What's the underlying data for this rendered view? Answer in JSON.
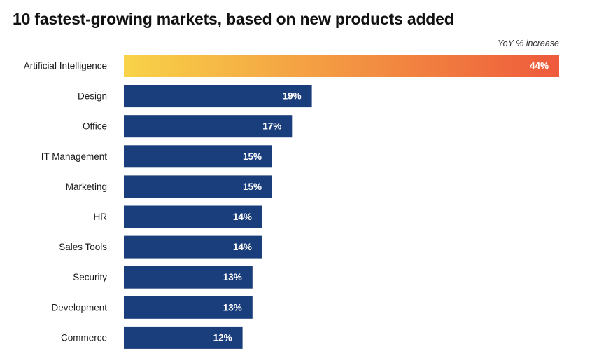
{
  "title": "10 fastest-growing markets, based on new products added",
  "unit_note": "YoY % increase",
  "colors": {
    "bar": "#1a3d7c",
    "highlight_start": "#f8d348",
    "highlight_end": "#ee5a3c",
    "value_text": "#ffffff"
  },
  "chart_data": {
    "type": "bar",
    "orientation": "horizontal",
    "title": "10 fastest-growing markets, based on new products added",
    "categories": [
      "Artificial Intelligence",
      "Design",
      "Office",
      "IT Management",
      "Marketing",
      "HR",
      "Sales Tools",
      "Security",
      "Development",
      "Commerce"
    ],
    "values": [
      44,
      19,
      17,
      15,
      15,
      14,
      14,
      13,
      13,
      12
    ],
    "value_labels": [
      "44%",
      "19%",
      "17%",
      "15%",
      "15%",
      "14%",
      "14%",
      "13%",
      "13%",
      "12%"
    ],
    "xlabel": "YoY % increase",
    "ylabel": "",
    "xlim": [
      0,
      44
    ],
    "grid": false,
    "legend": "none",
    "highlighted_category": "Artificial Intelligence"
  }
}
